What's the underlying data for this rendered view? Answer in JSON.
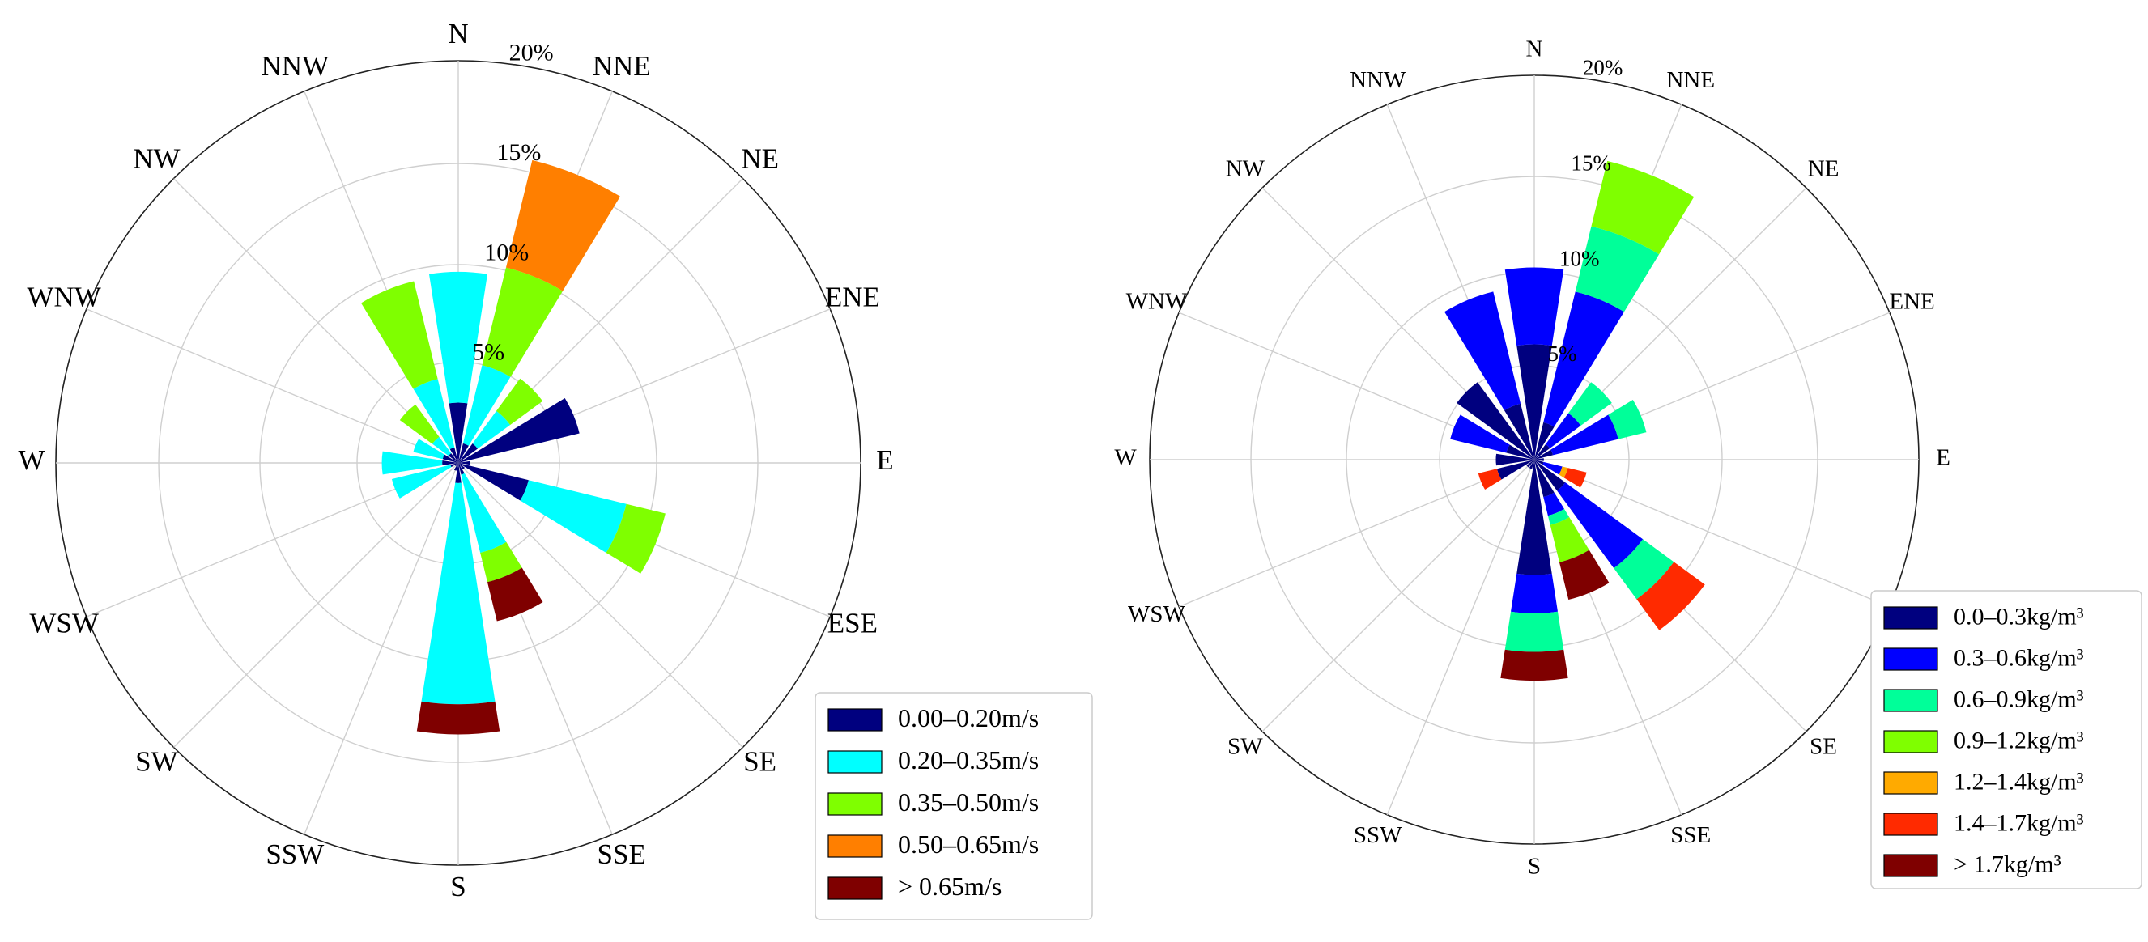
{
  "chart_data": [
    {
      "type": "windrose",
      "title": "",
      "directions": [
        "N",
        "NNE",
        "NE",
        "ENE",
        "E",
        "ESE",
        "SE",
        "SSE",
        "S",
        "SSW",
        "SW",
        "WSW",
        "W",
        "WNW",
        "NW",
        "NNW"
      ],
      "radial_ticks": [
        "5%",
        "10%",
        "15%",
        "20%"
      ],
      "radial_tick_values": [
        5,
        10,
        15,
        20
      ],
      "rmax": 20,
      "legend_position": "bottom-right",
      "series": [
        {
          "name": "0.00–0.20m/s",
          "color": "#00007F",
          "values": [
            3.0,
            1.0,
            1.2,
            6.2,
            0.6,
            3.6,
            0.4,
            0.6,
            1.0,
            0.4,
            0.2,
            0.4,
            0.8,
            0.8,
            0.6,
            0.8
          ]
        },
        {
          "name": "0.20–0.35m/s",
          "color": "#00FFFF",
          "values": [
            6.5,
            4.0,
            2.0,
            0,
            0,
            5.0,
            0,
            4.0,
            11.0,
            0,
            0,
            3.0,
            3.0,
            1.5,
            1.0,
            3.5
          ]
        },
        {
          "name": "0.35–0.50m/s",
          "color": "#7FFF00",
          "values": [
            0,
            5.0,
            2.0,
            0,
            0,
            2.0,
            0,
            1.5,
            0,
            0,
            0,
            0,
            0,
            0,
            2.0,
            5.0
          ]
        },
        {
          "name": "0.50–0.65m/s",
          "color": "#FF7F00",
          "values": [
            0,
            5.5,
            0,
            0,
            0,
            0,
            0,
            0,
            0,
            0,
            0,
            0,
            0,
            0,
            0,
            0
          ]
        },
        {
          "name": "> 0.65m/s",
          "color": "#7F0000",
          "values": [
            0,
            0,
            0,
            0,
            0,
            0,
            0,
            2.0,
            1.5,
            0,
            0,
            0,
            0,
            0,
            0,
            0
          ]
        }
      ]
    },
    {
      "type": "windrose",
      "title": "",
      "directions": [
        "N",
        "NNE",
        "NE",
        "ENE",
        "E",
        "ESE",
        "SE",
        "SSE",
        "S",
        "SSW",
        "SW",
        "WSW",
        "W",
        "WNW",
        "NW",
        "NNW"
      ],
      "radial_ticks": [
        "5%",
        "10%",
        "15%",
        "20%"
      ],
      "radial_tick_values": [
        5,
        10,
        15,
        20
      ],
      "rmax": 20,
      "legend_position": "right",
      "series": [
        {
          "name": "0.0–0.3kg/m³",
          "color": "#00007F",
          "values": [
            6.0,
            2.0,
            1.0,
            1.0,
            0.5,
            0.5,
            2.0,
            2.0,
            6.0,
            0.5,
            0.5,
            2.0,
            2.0,
            1.5,
            5.0,
            3.0
          ]
        },
        {
          "name": "0.3–0.6kg/m³",
          "color": "#0000FF",
          "values": [
            4.0,
            7.0,
            2.0,
            3.5,
            0,
            1.0,
            5.0,
            1.0,
            2.0,
            0,
            0,
            0,
            0,
            3.0,
            0,
            6.0
          ]
        },
        {
          "name": "0.6–0.9kg/m³",
          "color": "#00FF99",
          "values": [
            0,
            3.5,
            2.0,
            1.5,
            0,
            0,
            2.0,
            0.5,
            2.0,
            0,
            0,
            0,
            0,
            0,
            0,
            0
          ]
        },
        {
          "name": "0.9–1.2kg/m³",
          "color": "#7FFF00",
          "values": [
            0,
            3.5,
            0,
            0,
            0,
            0,
            0,
            2.0,
            0,
            0,
            0,
            0,
            0,
            0,
            0,
            0
          ]
        },
        {
          "name": "1.2–1.4kg/m³",
          "color": "#FFAA00",
          "values": [
            0,
            0,
            0,
            0,
            0,
            0.3,
            0,
            0,
            0,
            0,
            0,
            0,
            0,
            0,
            0,
            0
          ]
        },
        {
          "name": "1.4–1.7kg/m³",
          "color": "#FF2A00",
          "values": [
            0,
            0,
            0,
            0,
            0,
            1.0,
            2.0,
            0,
            0,
            0,
            0,
            1.0,
            0,
            0,
            0,
            0
          ]
        },
        {
          "name": "> 1.7kg/m³",
          "color": "#7F0000",
          "values": [
            0,
            0,
            0,
            0,
            0,
            0,
            0,
            2.0,
            1.5,
            0,
            0,
            0,
            0,
            0,
            0,
            0
          ]
        }
      ]
    }
  ]
}
